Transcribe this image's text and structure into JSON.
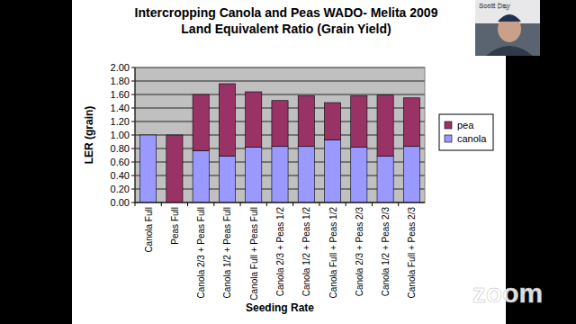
{
  "chart_data": {
    "type": "bar",
    "title": "Intercropping Canola and Peas WADO- Melita 2009",
    "subtitle": "Land Equivalent Ratio (Grain Yield)",
    "x_label": "Seeding Rate",
    "y_label": "LER (grain)",
    "categories": [
      "Canola Full",
      "Peas Full",
      "Canola 2/3 + Peas Full",
      "Canola 1/2 + Peas Full",
      "Canola Full + Peas Full",
      "Canola 2/3 + Peas 1/2",
      "Canola 1/2 + Peas 1/2",
      "Canola Full + Peas 1/2",
      "Canola 2/3 + Peas 2/3",
      "Canola 1/2 + Peas 2/3",
      "Canola Full + Peas 2/3"
    ],
    "series": [
      {
        "name": "canola",
        "color": "#9999ff",
        "values": [
          1.0,
          0,
          0.77,
          0.69,
          0.82,
          0.83,
          0.83,
          0.93,
          0.82,
          0.69,
          0.83
        ]
      },
      {
        "name": "pea",
        "color": "#993366",
        "values": [
          0,
          1.0,
          0.83,
          1.07,
          0.82,
          0.68,
          0.75,
          0.55,
          0.76,
          0.9,
          0.72
        ]
      }
    ],
    "ylim": [
      0,
      2
    ],
    "yticks": [
      {
        "value": 0,
        "label": "0.00"
      },
      {
        "value": 0.2,
        "label": "0.20"
      },
      {
        "value": 0.4,
        "label": "0.40"
      },
      {
        "value": 0.6,
        "label": "0.60"
      },
      {
        "value": 0.8,
        "label": "0.80"
      },
      {
        "value": 1,
        "label": "1.00"
      },
      {
        "value": 1.2,
        "label": "1.20"
      },
      {
        "value": 1.4,
        "label": "1.40"
      },
      {
        "value": 1.6,
        "label": "1.60"
      },
      {
        "value": 1.8,
        "label": "1.80"
      },
      {
        "value": 2,
        "label": "2.00"
      }
    ],
    "grid": true,
    "stacked": true,
    "legend": "right"
  },
  "overlay": {
    "presenter": "Scott Day",
    "watermark": "zoom"
  }
}
